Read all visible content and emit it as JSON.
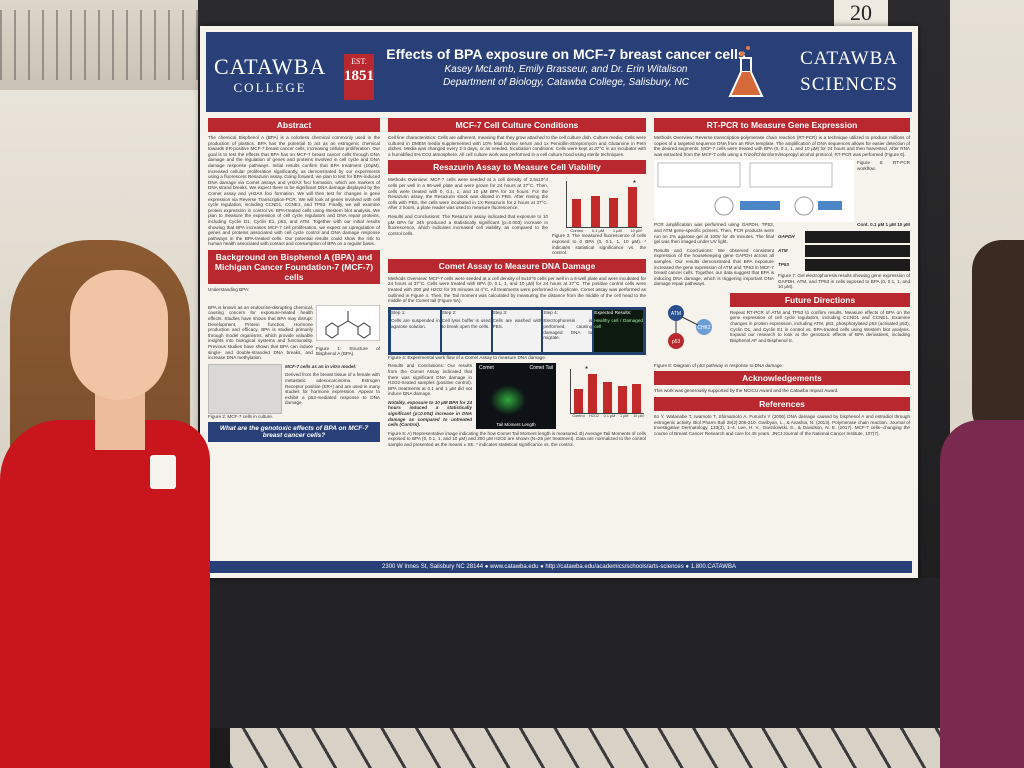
{
  "poster_number": "20",
  "header": {
    "college_name": "CATAWBA",
    "college_sub": "COLLEGE",
    "seal_est": "EST.",
    "seal_year": "1851",
    "title": "Effects of BPA exposure on MCF-7 breast cancer cells",
    "authors": "Kasey McLamb, Emily Brasseur, and Dr. Erin Witalison",
    "affiliation": "Department of Biology, Catawba College, Salisbury, NC",
    "sciences_top": "CATAWBA",
    "sciences_bottom": "SCIENCES"
  },
  "abstract": {
    "heading": "Abstract",
    "body": "The chemical Bisphenol A (BPA) is a colorless chemical commonly used in the production of plastics. BPA has the potential to act as an estrogenic chemical towards ER-positive MCF-7 breast cancer cells, increasing cellular proliferation. Our goal is to test the effects that BPA has on MCF-7 breast cancer cells through DNA damage and the regulation of genes and proteins involved in cell cycle and DNA damage response pathways. Initial results confirm that BPA treatment (10µM), increased cellular proliferation significantly, as demonstrated by our experiments using a fluorescent Resazurin assay. Going forward, we plan to test for BPA-induced DNA damage via Comet assays and γH2AX foci formation, which are markers of DNA strand breaks. We expect there to be significant DNA damage displayed by the Comet assay and γH2AX foci formation. We will then test for changes in gene expression via Reverse Transcription-PCR. We will look at genes involved with cell cycle regulation, including CCND1, CCNE1, and TP53. Finally, we will examine protein expression in control vs. BPA-treated cells using Western blot analysis. We plan to measure the expression of cell cycle regulators and DNA repair proteins, including Cyclin D1, Cyclin E1, p53, and ATM. Together with our initial results showing that BPA increases MCF-7 cell proliferation, we expect an upregulation of genes and proteins associated with cell cycle control and DNA damage response pathways in the BPA-treated cells. Our potential results could show the risk to human health associated with contact and consumption of BPA on a regular basis."
  },
  "background": {
    "heading": "Background on Bisphenol A (BPA) and Michigan Cancer Foundation-7 (MCF-7) cells",
    "subheading": "Understanding BPA:",
    "body": "BPA is known as an endocrine-disrupting chemical, causing concern for exposure-related health effects. Studies have shown that BPA may disrupt: Development, Protein function, Hormone production and efficacy. BPA is studied primarily through model organisms, which provide valuable insights into biological systems and functionality. Previous studies have shown that BPA can induce single- and double-stranded DNA breaks, and increase DNA methylation.",
    "fig1_caption": "Figure 1: Structure of Bisphenol A (BPA).",
    "mcf7_heading": "MCF-7 cells as an in vitro model:",
    "mcf7_body": "Derived from the breast tissue of a female with metastatic adenocarcinoma. Estrogen Receptor positive (ER+) and are used in many studies for hormone expression. Appear to exhibit a p53-mediated response to DNA damage.",
    "fig2_caption": "Figure 2: MCF-7 cells in culture.",
    "question": "What are the genotoxic effects of BPA on MCF-7 breast cancer cells?"
  },
  "culture": {
    "heading": "MCF-7 Cell Culture Conditions",
    "body": "Cell line characteristics: Cells are adherent, meaning that they grow attached to the cell culture dish. Culture media: Cells were cultured in DMEM media supplemented with 10% fetal bovine serum and 1x Penicillin-Streptomycin and Glutamine in Petri dishes. Media was changed every 2-3 days, or as needed. Incubation conditions: Cells were kept at 37°C in an incubator with a humidified 5% CO2 atmosphere. All cell culture work was performed in a cell culture hood using sterile techniques."
  },
  "resazurin": {
    "heading": "Resazurin Assay to Measure Cell Viability",
    "methods": "Methods Overview: MCF-7 cells were seeded at a cell density of 2.5x10^4 cells per well in a 96-well plate and were grown for 24 hours at 37°C. Then, cells were treated with 0, 0.1, 1, and 10 µM BPA for 24 hours. For the Resazurin assay, the Resazurin stock was diluted in PBS. After rinsing the cells with PBS, the cells were incubated in 1X Resazurin for 2 hours at 37°C. After 2 hours, a plate reader was used to measure fluorescence.",
    "results": "Results and Conclusions: The Resazurin assay indicated that exposure to 10 µM BPA for 24h produced a statistically significant (p=0.003) increase in fluorescence, which indicates increased cell viability, as compared to the control cells.",
    "fig3_caption": "Figure 3: The measured fluorescence of cells exposed to 0 BPA (0, 0.1, 1, 10 µM). * indicates statistical significance vs. the control."
  },
  "comet": {
    "heading": "Comet Assay to Measure DNA Damage",
    "methods": "Methods Overview: MCF-7 cells were seeded at a cell density of 5x10^5 cells per well in a 6-well plate and were incubated for 24 hours at 37°C. Cells were treated with BPA (0, 0.1, 1, and 10 µM) for 24 hours at 37°C. The positive control cells were treated with 200 µM H2O2 for 25 minutes at 4°C. All treatments were performed in duplicate. Comet assay was performed as outlined in Figure 4. Then, the Tail moment was calculated by measuring the distance from the middle of the cell head to the middle of the Comet tail (Figure 5A).",
    "steps": [
      "Step 1:",
      "Step 2:",
      "Step 3:",
      "Step 4:",
      "Expected Results:"
    ],
    "step_texts": [
      "Cells are suspended in agarose solution.",
      "Cell lysis buffer is used to break open the cells.",
      "Cells are washed with PBS.",
      "Electrophoresis is performed, causing damaged DNA to migrate.",
      "Healthy cell / Damaged cell"
    ],
    "fig4_caption": "Figure 4: Experimental work flow of a Comet Assay to measure DNA damage.",
    "results": "Results and Conclusions: Our results from the Comet Assay indicated that there was significant DNA damage in H2O2-treated samples (positive control). BPA treatments at 0.1 and 1 µM did not induce DNA damage.",
    "notably": "Notably, exposure to 10 µM BPA for 24 hours induced a statistically significant (p=0.004) increase in DNA damage as compared to untreated cells (Control).",
    "fig5_caption": "Figure 5: A) Representative image indicating the how Comet Tail Moment length is measured. B) Average Tail Moments of cells exposed to BPA (0, 0.1, 1, and 10 µM) and 200 µM H2O2 are shown (N=25 per treatment). Data are normalized to the control sample and presented as the means ± SE. * indicates statistical significance vs. the control."
  },
  "rtpcr": {
    "heading": "RT-PCR to Measure Gene Expression",
    "methods": "Methods Overview: Reverse transcription-polymerase chain reaction (RT-PCR) is a technique utilized to produce millions of copies of a targeted sequence DNA from an RNA template. The amplification of DNA sequences allows for easier detection of the desired segments. MCF-7 cells were treated with BPA (0, 0.1, 1, and 10 µM) for 24 hours and then harvested. After RNA was extracted from the MCF-7 cells using a Trizol/Chloroform/Isopropyl alcohol protocol, RT-PCR was performed (Figure 6).",
    "diagram_labels": [
      "dNTPs",
      "Reverse transcriptase",
      "Oligo dTs and/or random primers",
      "dNTPs",
      "DNA polymerase",
      "Gene specific primers",
      "RNA template",
      "Reverse transcription",
      "cDNA template",
      "PCR",
      "Amplified cDNA"
    ],
    "fig6_caption": "Figure 6: RT-PCR workflow.",
    "pcr_text": "PCR amplification was performed using GAPDH, TP53, and ATM gene-specific primers. Then, PCR products were run on 2% agarose gel at 100V for 45 minutes. The final gel was then imaged under UV light.",
    "gel_header": "Cont.  0.1 µM  1 µM  10 µM",
    "gel_rows": [
      "GAPDH",
      "ATM",
      "TP53"
    ],
    "fig7_caption": "Figure 7: Gel electrophoresis results showing gene expression of GAPDH, ATM, and TP53 in cells exposed to BPA (0, 0.1, 1, and 10 µM).",
    "results": "Results and Conclusions: We observed consistent expression of the housekeeping gene GAPDH across all samples. Our results demonstrated that BPA exposure increased the gene expression of ATM and TP53 in MCF-7 breast cancer cells. Together, our data suggest that BPA is inducing DNA damage, which is triggering important DNA damage repair pathways."
  },
  "future": {
    "heading": "Future Directions",
    "body": "Repeat RT-PCR of ATM and TP53 to confirm results. Measure effects of BPA on the gene expression of cell cycle regulators, including CCND1 and CCNE1. Examine changes in protein expression, including ATM, p53, phosphorylated p53 (activated p53), Cyclin D1, and Cyclin E1 in control vs. BPA-treated cells using Western blot analysis. Expand our research to look at the genotoxic effects of BPA derivatives, including Bisphenol AF and Bisphenol S.",
    "pathway_labels": [
      "ATM",
      "CHK2",
      "p53",
      "Apoptosis",
      "Senescence",
      "Growth arrest"
    ],
    "fig8_caption": "Figure 8: Diagram of p53 pathway in response to DNA damage."
  },
  "ack": {
    "heading": "Acknowledgements",
    "body": "This work was generously supported by the NCICU Award and the Catawba Impact Award."
  },
  "refs": {
    "heading": "References",
    "body": "Ito Y, Watanabe T, Iwamoto T, Shimamoto A, Furuichi Y (2006) DNA damage caused by bisphenol A and estradiol through estrogenic activity. Biol Pharm Bull 29(2):206-210. Garibyan, L., & Avashia, N. (2013). Polymerase chain reaction. Journal of Investigative Dermatology, 133(3), 1–4. Lee, H. V., Gwizdowski, S., & Davidson, N. E. (2017). MCF-7 cells--changing the course of Breast Cancer Research and care for 45 years. JNCI Journal of the National Cancer Institute, 107(7)."
  },
  "footer": "2300 W Innes St, Salisbury NC 28144  ●  www.catawba.edu  ●  http://catawba.edu/academics/schools/arts-sciences  ●  1.800.CATAWBA",
  "chart_resazurin": {
    "categories": [
      "Control",
      "0.1 µM",
      "1 µM",
      "10 µM"
    ],
    "values": [
      0.56,
      0.62,
      0.57,
      0.8
    ],
    "significance_marker": "*",
    "ylabel": "Relative Fluorescence"
  },
  "chart_comet": {
    "categories": [
      "Control",
      "H2O2",
      "0.1 µM",
      "1 µM",
      "10 µM"
    ],
    "values": [
      1.0,
      1.6,
      1.3,
      1.1,
      1.2
    ],
    "significance_marker": "*",
    "panel_labels": [
      "A",
      "B"
    ],
    "image_label": "Comet",
    "image_tail_label": "Comet Tail",
    "image_axis_label": "Tail Moment Length"
  }
}
